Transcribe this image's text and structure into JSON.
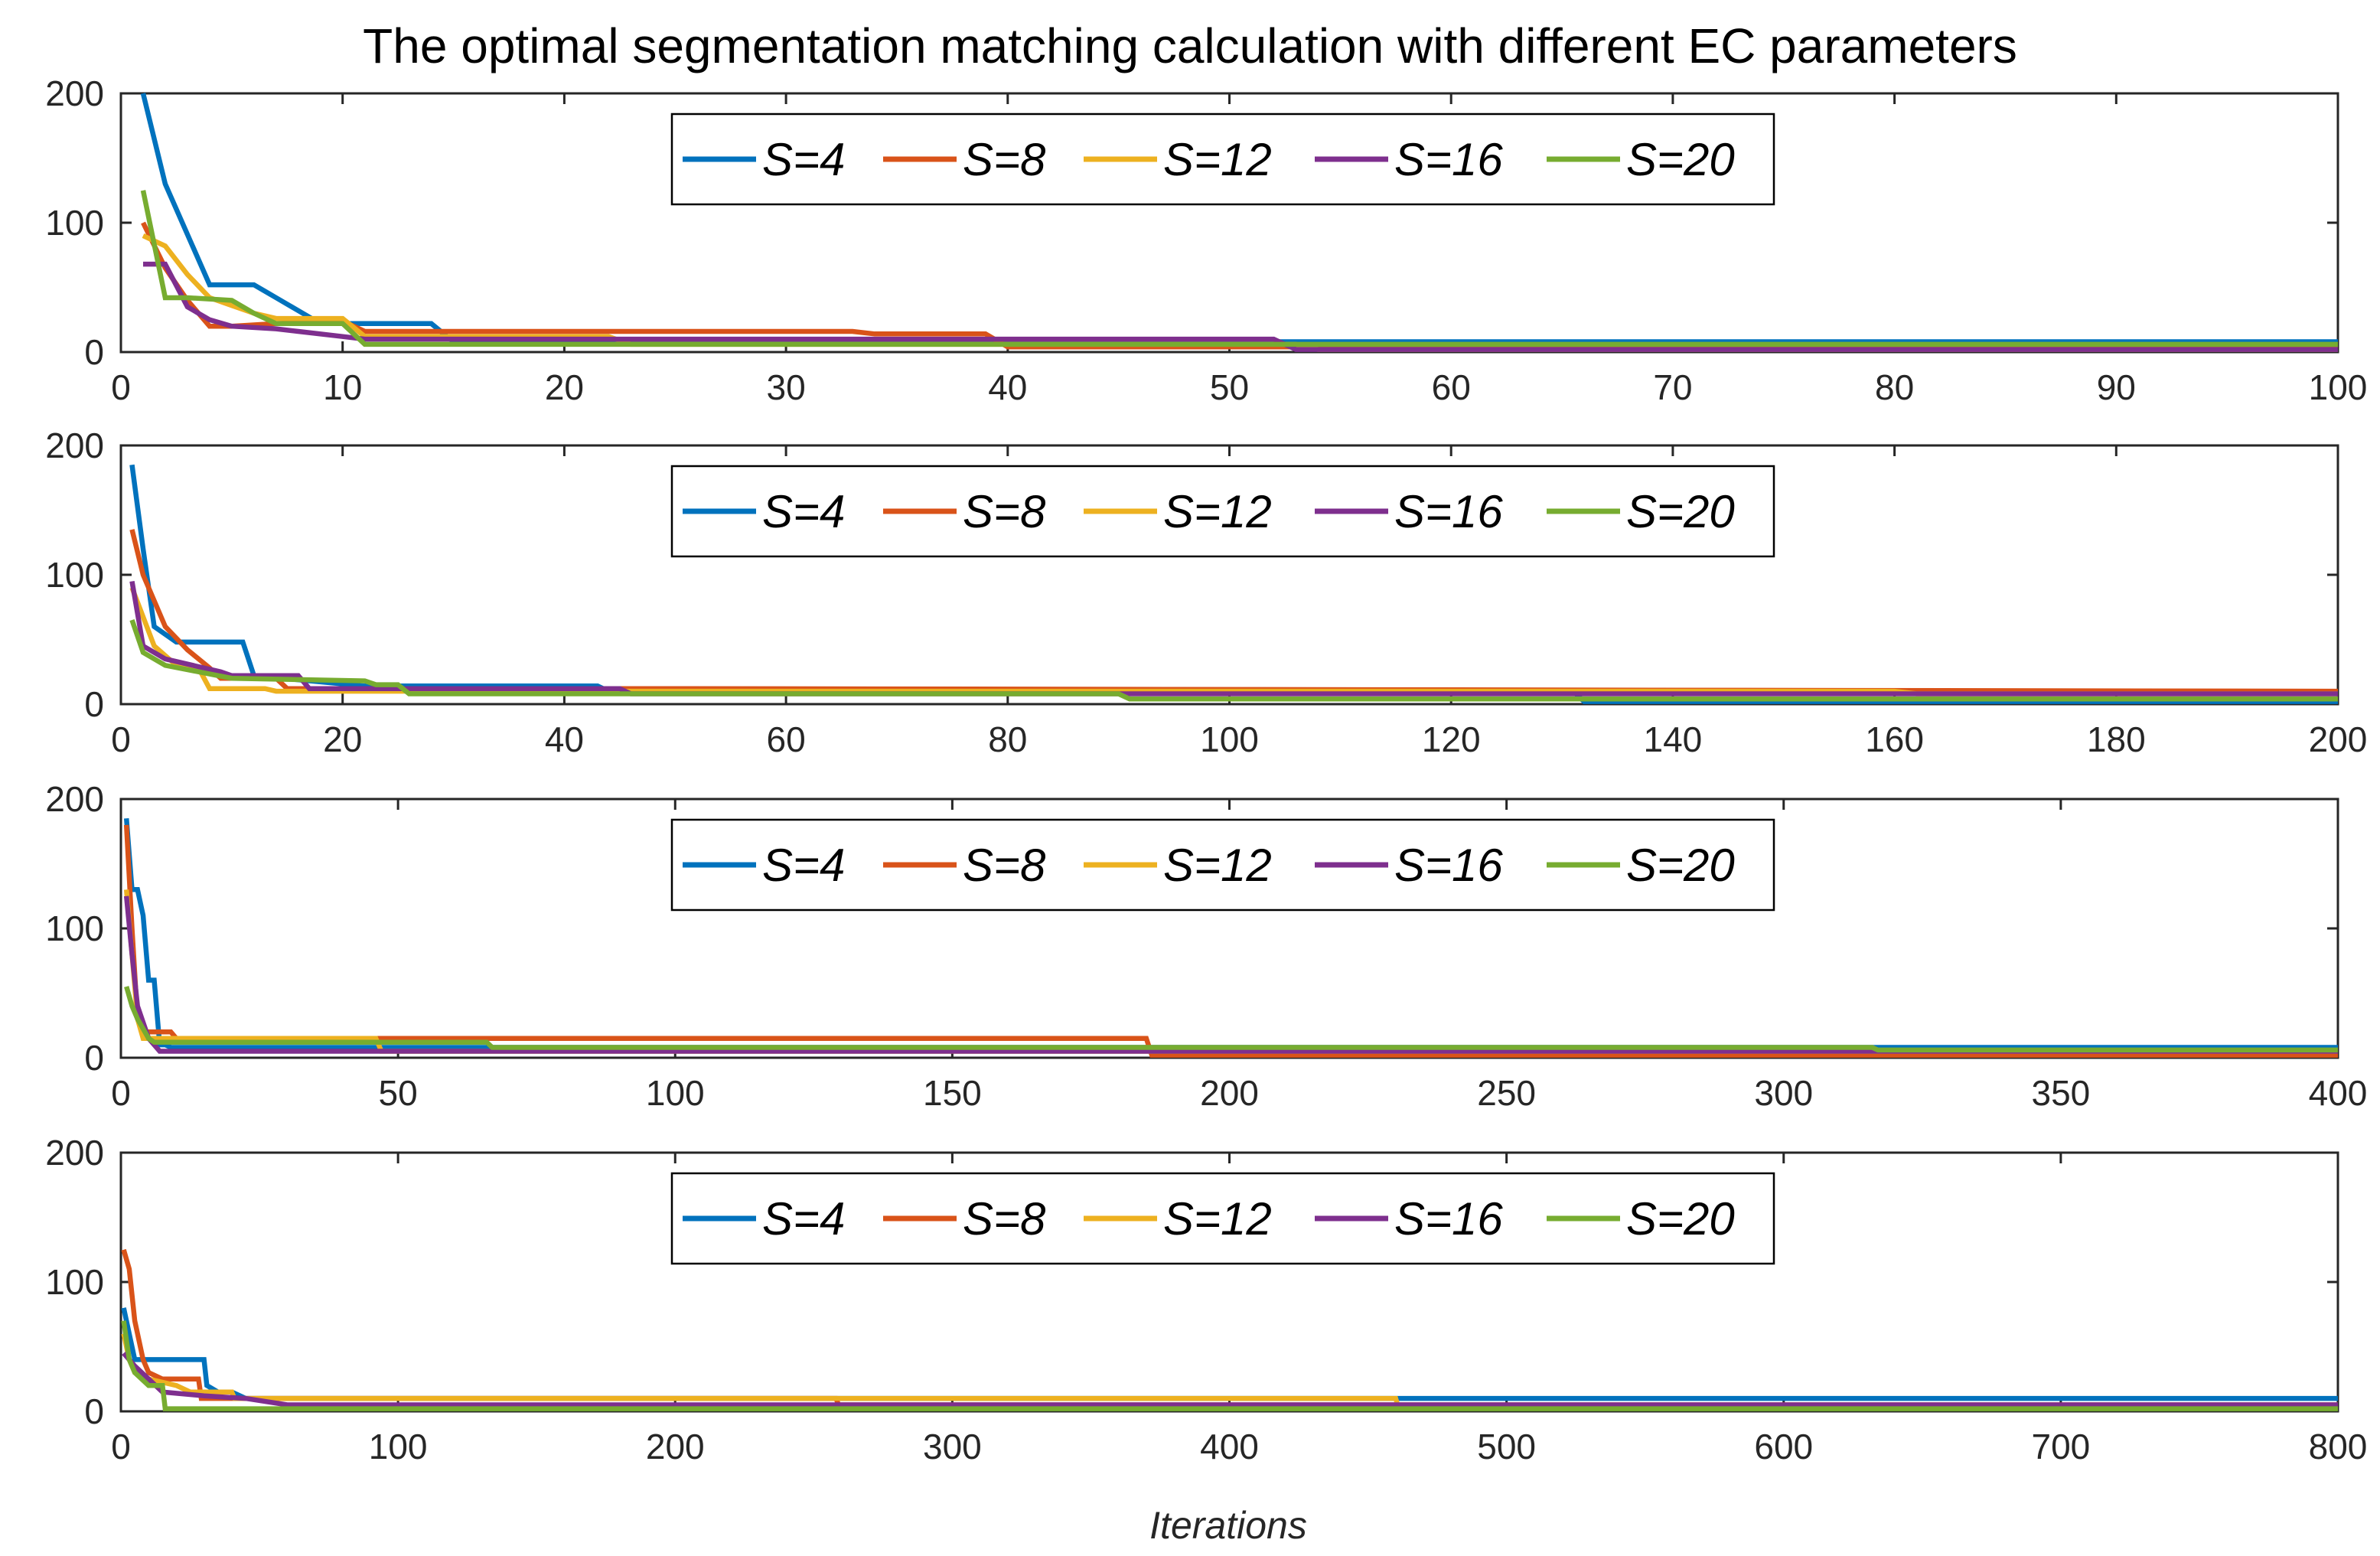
{
  "title": "The optimal segmentation matching calculation with different EC parameters",
  "xlabel": "Iterations",
  "chart_data": [
    {
      "type": "line",
      "xlim": [
        0,
        100
      ],
      "ylim": [
        0,
        200
      ],
      "xticks": [
        0,
        10,
        20,
        30,
        40,
        50,
        60,
        70,
        80,
        90,
        100
      ],
      "yticks": [
        0,
        100,
        200
      ],
      "legend": "top-center",
      "series": [
        {
          "name": "S=4",
          "color": "#0072BD",
          "x": [
            1,
            2,
            4,
            6,
            7,
            9,
            10,
            14,
            15,
            52,
            53,
            100
          ],
          "y": [
            200,
            130,
            52,
            52,
            42,
            22,
            22,
            22,
            8,
            8,
            8,
            8
          ]
        },
        {
          "name": "S=8",
          "color": "#D95319",
          "x": [
            1,
            2,
            3,
            4,
            5,
            7,
            9,
            10,
            11,
            33,
            34,
            39,
            40,
            100
          ],
          "y": [
            100,
            65,
            40,
            20,
            20,
            22,
            24,
            24,
            16,
            16,
            14,
            14,
            4,
            4
          ]
        },
        {
          "name": "S=12",
          "color": "#EDB120",
          "x": [
            1,
            2,
            3,
            4,
            5,
            6,
            7,
            10,
            11,
            22,
            23,
            53,
            54,
            100
          ],
          "y": [
            90,
            82,
            60,
            42,
            36,
            30,
            26,
            26,
            12,
            12,
            6,
            6,
            2,
            2
          ]
        },
        {
          "name": "S=16",
          "color": "#7E2F8E",
          "x": [
            1,
            2,
            3,
            4,
            5,
            7,
            8,
            10,
            11,
            52,
            53,
            100
          ],
          "y": [
            68,
            68,
            35,
            25,
            20,
            18,
            16,
            12,
            10,
            10,
            2,
            2
          ]
        },
        {
          "name": "S=20",
          "color": "#77AC30",
          "x": [
            1,
            2,
            3,
            5,
            6,
            7,
            10,
            11,
            100
          ],
          "y": [
            125,
            42,
            42,
            40,
            30,
            22,
            22,
            6,
            6
          ]
        }
      ]
    },
    {
      "type": "line",
      "xlim": [
        0,
        200
      ],
      "ylim": [
        0,
        200
      ],
      "xticks": [
        0,
        20,
        40,
        60,
        80,
        100,
        120,
        140,
        160,
        180,
        200
      ],
      "yticks": [
        0,
        100,
        200
      ],
      "legend": "top-center",
      "series": [
        {
          "name": "S=4",
          "color": "#0072BD",
          "x": [
            1,
            2,
            3,
            5,
            10,
            11,
            12,
            22,
            43,
            44,
            131,
            132,
            200
          ],
          "y": [
            185,
            120,
            60,
            48,
            48,
            48,
            22,
            14,
            14,
            10,
            10,
            2,
            2
          ]
        },
        {
          "name": "S=8",
          "color": "#D95319",
          "x": [
            1,
            2,
            4,
            6,
            8,
            9,
            14,
            15,
            50,
            51,
            200
          ],
          "y": [
            135,
            100,
            60,
            42,
            28,
            20,
            20,
            12,
            12,
            12,
            10
          ]
        },
        {
          "name": "S=12",
          "color": "#EDB120",
          "x": [
            1,
            3,
            5,
            7,
            8,
            13,
            14,
            55,
            160,
            162,
            200
          ],
          "y": [
            90,
            45,
            30,
            28,
            12,
            12,
            10,
            10,
            10,
            8,
            8
          ]
        },
        {
          "name": "S=16",
          "color": "#7E2F8E",
          "x": [
            1,
            2,
            4,
            9,
            10,
            16,
            17,
            45,
            46,
            200
          ],
          "y": [
            95,
            45,
            35,
            25,
            22,
            22,
            12,
            12,
            8,
            8
          ]
        },
        {
          "name": "S=20",
          "color": "#77AC30",
          "x": [
            1,
            2,
            4,
            10,
            22,
            23,
            25,
            26,
            90,
            91,
            200
          ],
          "y": [
            65,
            40,
            30,
            20,
            18,
            15,
            15,
            8,
            8,
            4,
            4
          ]
        }
      ]
    },
    {
      "type": "line",
      "xlim": [
        0,
        400
      ],
      "ylim": [
        0,
        200
      ],
      "xticks": [
        0,
        50,
        100,
        150,
        200,
        250,
        300,
        350,
        400
      ],
      "yticks": [
        0,
        100,
        200
      ],
      "legend": "top-center",
      "series": [
        {
          "name": "S=4",
          "color": "#0072BD",
          "x": [
            1,
            2,
            3,
            4,
            5,
            6,
            7,
            8,
            9,
            400
          ],
          "y": [
            185,
            130,
            130,
            110,
            60,
            60,
            10,
            10,
            8,
            8
          ]
        },
        {
          "name": "S=8",
          "color": "#D95319",
          "x": [
            1,
            2,
            3,
            4,
            9,
            10,
            185,
            186,
            400
          ],
          "y": [
            180,
            100,
            30,
            20,
            20,
            15,
            15,
            2,
            2
          ]
        },
        {
          "name": "S=12",
          "color": "#EDB120",
          "x": [
            1,
            2,
            3,
            4,
            46,
            47,
            400
          ],
          "y": [
            130,
            80,
            30,
            15,
            15,
            5,
            5
          ]
        },
        {
          "name": "S=16",
          "color": "#7E2F8E",
          "x": [
            1,
            2,
            3,
            5,
            6,
            7,
            400
          ],
          "y": [
            125,
            80,
            40,
            15,
            10,
            5,
            5
          ]
        },
        {
          "name": "S=20",
          "color": "#77AC30",
          "x": [
            1,
            2,
            3,
            5,
            6,
            66,
            67,
            316,
            317,
            400
          ],
          "y": [
            55,
            40,
            30,
            15,
            12,
            12,
            8,
            8,
            6,
            6
          ]
        }
      ]
    },
    {
      "type": "line",
      "xlim": [
        0,
        800
      ],
      "ylim": [
        0,
        200
      ],
      "xticks": [
        0,
        100,
        200,
        300,
        400,
        500,
        600,
        700,
        800
      ],
      "yticks": [
        0,
        100,
        200
      ],
      "legend": "top-center",
      "series": [
        {
          "name": "S=4",
          "color": "#0072BD",
          "x": [
            1,
            5,
            10,
            30,
            31,
            35,
            40,
            45,
            800
          ],
          "y": [
            80,
            40,
            40,
            40,
            20,
            15,
            15,
            10,
            10
          ]
        },
        {
          "name": "S=8",
          "color": "#D95319",
          "x": [
            1,
            3,
            5,
            8,
            10,
            15,
            20,
            28,
            29,
            258,
            259,
            800
          ],
          "y": [
            125,
            110,
            70,
            40,
            30,
            25,
            25,
            25,
            10,
            10,
            5,
            5
          ]
        },
        {
          "name": "S=12",
          "color": "#EDB120",
          "x": [
            1,
            3,
            5,
            10,
            20,
            25,
            40,
            41,
            460,
            461,
            800
          ],
          "y": [
            60,
            40,
            30,
            25,
            20,
            15,
            15,
            10,
            10,
            3,
            3
          ]
        },
        {
          "name": "S=16",
          "color": "#7E2F8E",
          "x": [
            1,
            5,
            10,
            15,
            30,
            45,
            60,
            800
          ],
          "y": [
            45,
            35,
            25,
            15,
            12,
            10,
            5,
            5
          ]
        },
        {
          "name": "S=20",
          "color": "#77AC30",
          "x": [
            1,
            3,
            5,
            10,
            15,
            16,
            800
          ],
          "y": [
            70,
            40,
            30,
            20,
            20,
            2,
            2
          ]
        }
      ]
    }
  ]
}
